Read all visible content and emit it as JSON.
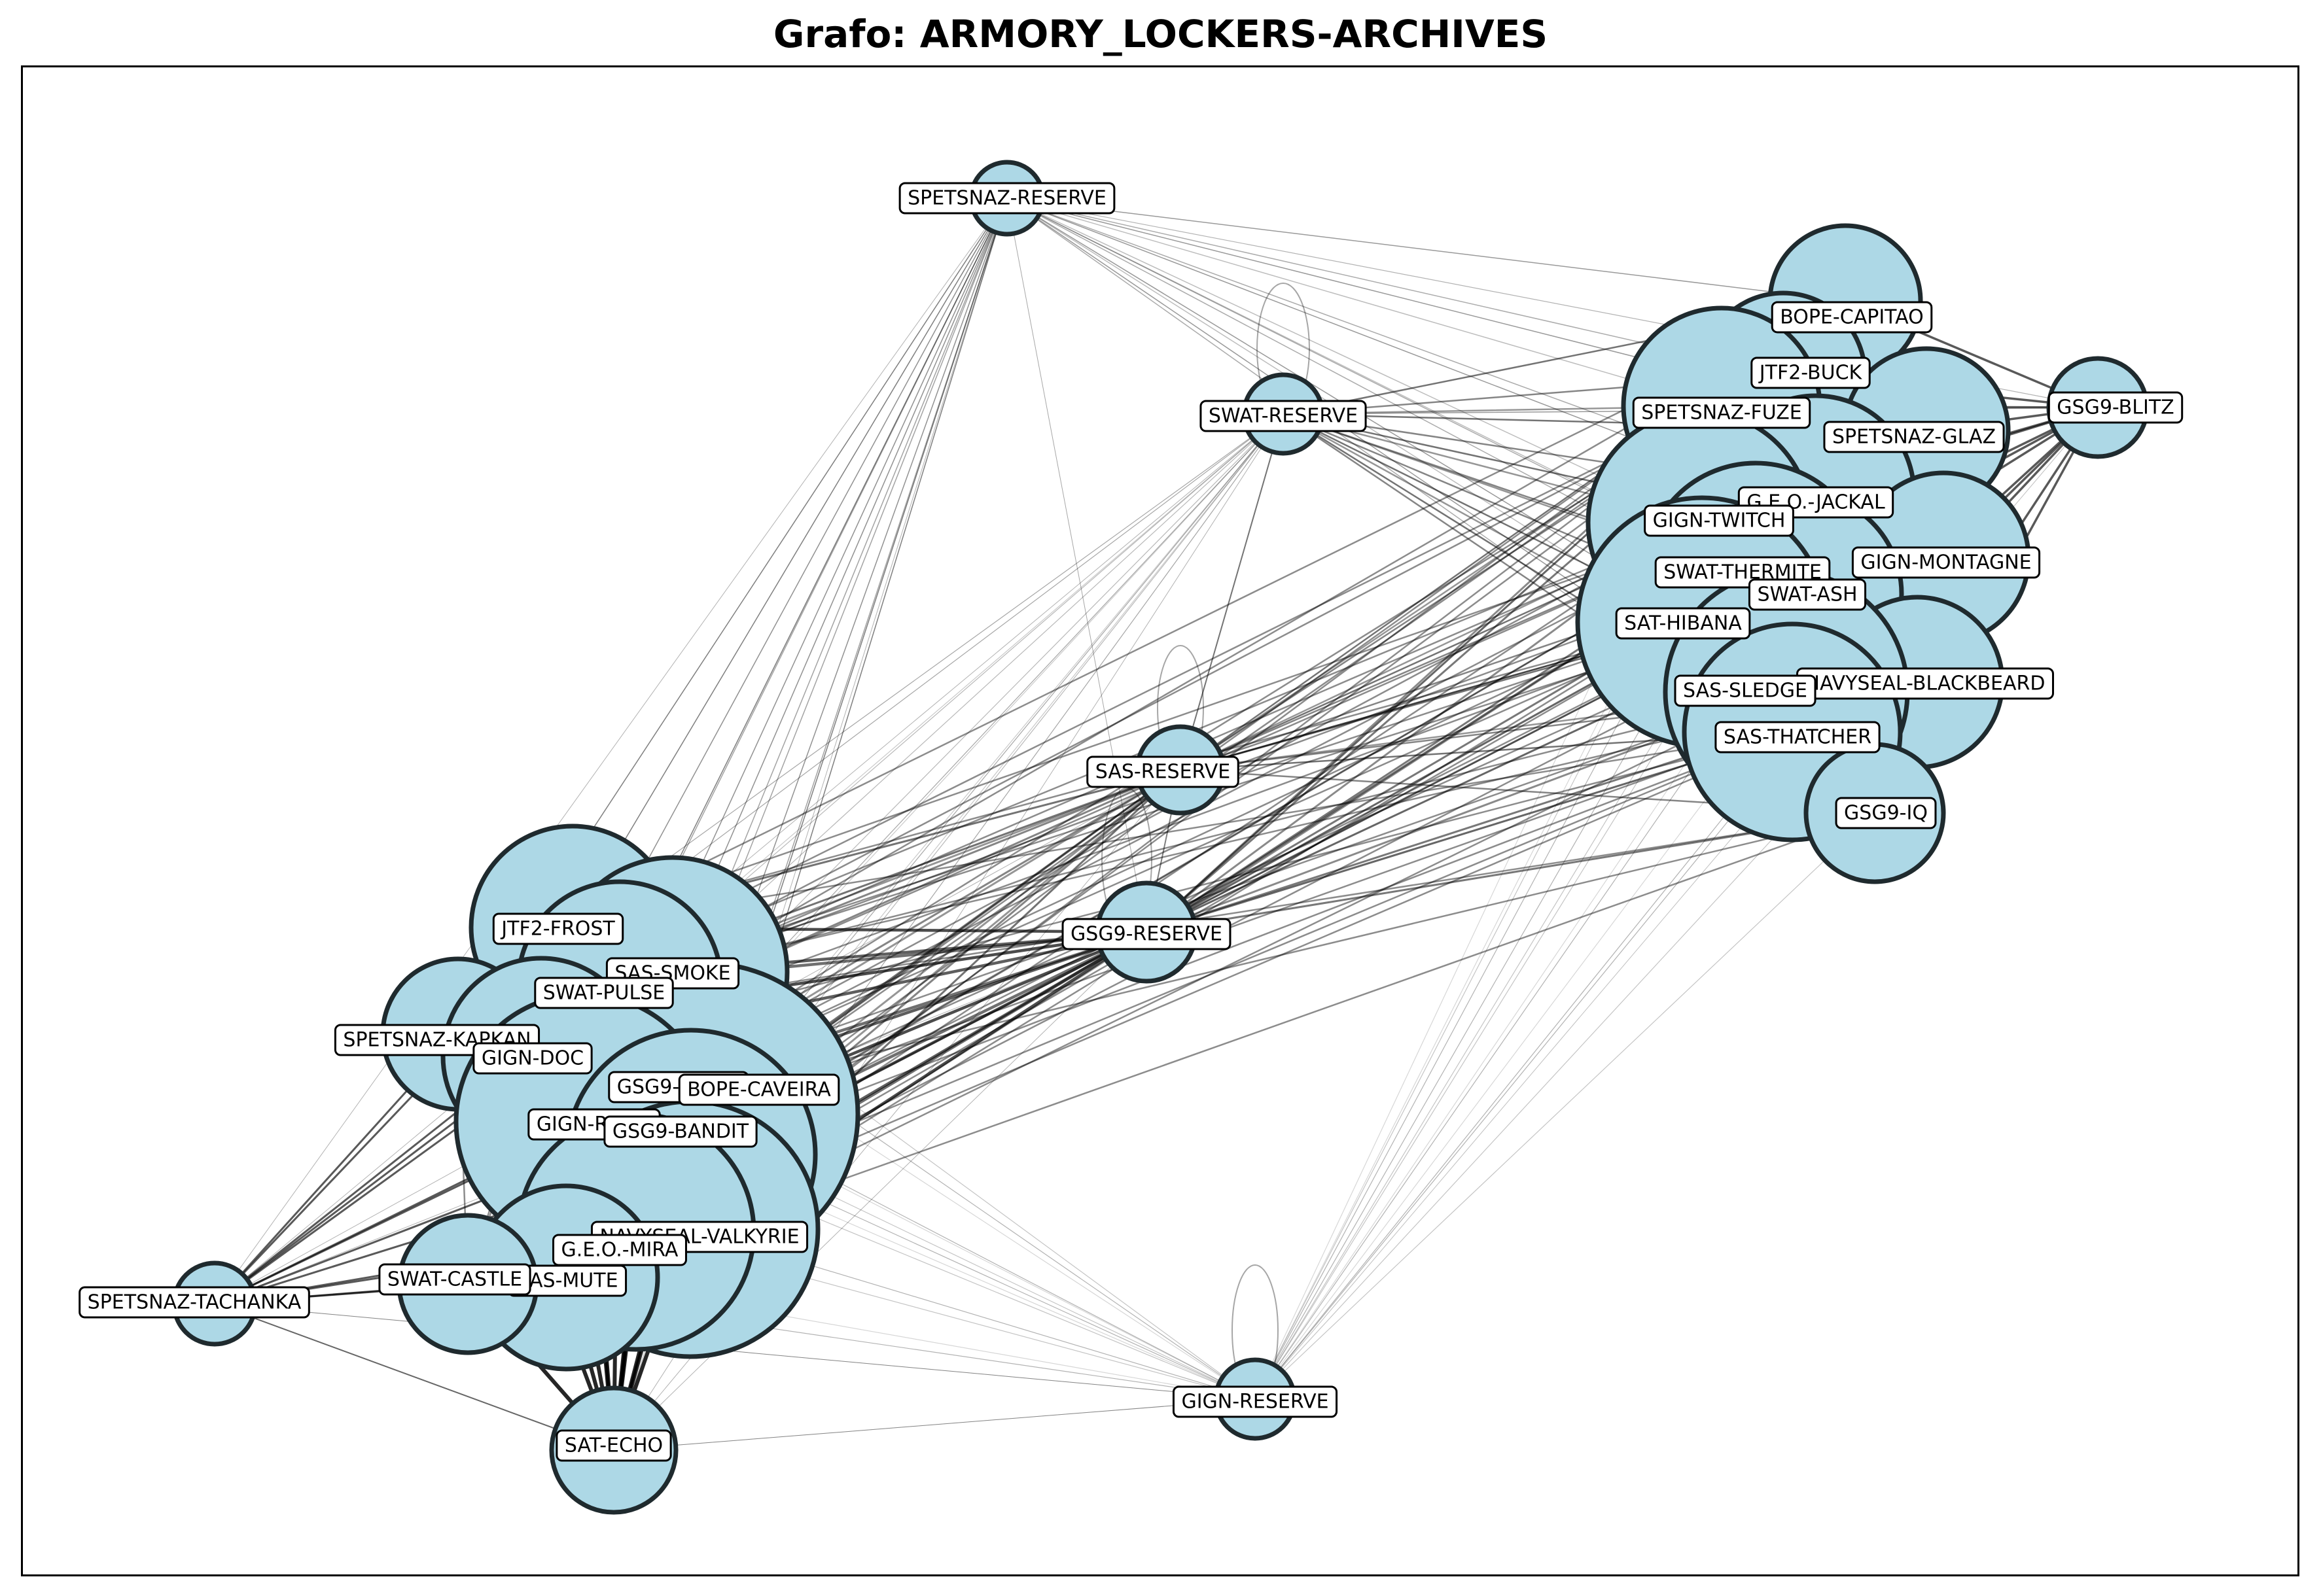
{
  "title": "Grafo: ARMORY_LOCKERS-ARCHIVES",
  "colors": {
    "node_fill": "#add8e6",
    "node_stroke": "#1f2a2e",
    "edge": "#000000",
    "label_bg": "#ffffff"
  },
  "graph": {
    "nodes": [
      {
        "id": "SPETSNAZ-RESERVE",
        "label": "SPETSNAZ-RESERVE",
        "weight": 1
      },
      {
        "id": "SWAT-RESERVE",
        "label": "SWAT-RESERVE",
        "weight": 1
      },
      {
        "id": "SAS-RESERVE",
        "label": "SAS-RESERVE",
        "weight": 1.1
      },
      {
        "id": "GSG9-RESERVE",
        "label": "GSG9-RESERVE",
        "weight": 1.3
      },
      {
        "id": "GIGN-RESERVE",
        "label": "GIGN-RESERVE",
        "weight": 1
      },
      {
        "id": "SAT-ECHO",
        "label": "SAT-ECHO",
        "weight": 1.6
      },
      {
        "id": "SPETSNAZ-TACHANKA",
        "label": "SPETSNAZ-TACHANKA",
        "weight": 1
      },
      {
        "id": "BOPE-CAPITAO",
        "label": "BOPE-CAPITAO",
        "weight": 2
      },
      {
        "id": "JTF2-BUCK",
        "label": "JTF2-BUCK",
        "weight": 2.2
      },
      {
        "id": "GSG9-BLITZ",
        "label": "GSG9-BLITZ",
        "weight": 1.3
      },
      {
        "id": "SPETSNAZ-FUZE",
        "label": "SPETSNAZ-FUZE",
        "weight": 2.6
      },
      {
        "id": "SPETSNAZ-GLAZ",
        "label": "SPETSNAZ-GLAZ",
        "weight": 2.2
      },
      {
        "id": "G.E.O.-JACKAL",
        "label": "G.E.O.-JACKAL",
        "weight": 2.6
      },
      {
        "id": "GIGN-TWITCH",
        "label": "GIGN-TWITCH",
        "weight": 3
      },
      {
        "id": "GIGN-MONTAGNE",
        "label": "GIGN-MONTAGNE",
        "weight": 2.3
      },
      {
        "id": "SWAT-THERMITE",
        "label": "SWAT-THERMITE",
        "weight": 3
      },
      {
        "id": "SWAT-ASH",
        "label": "SWAT-ASH",
        "weight": 2.7
      },
      {
        "id": "SAT-HIBANA",
        "label": "SAT-HIBANA",
        "weight": 3.3
      },
      {
        "id": "NAVYSEAL-BLACKBEARD",
        "label": "NAVYSEAL-BLACKBEARD",
        "weight": 2.3
      },
      {
        "id": "SAS-SLEDGE",
        "label": "SAS-SLEDGE",
        "weight": 3.2
      },
      {
        "id": "SAS-THATCHER",
        "label": "SAS-THATCHER",
        "weight": 2.9
      },
      {
        "id": "GSG9-IQ",
        "label": "GSG9-IQ",
        "weight": 2
      },
      {
        "id": "JTF2-FROST",
        "label": "JTF2-FROST",
        "weight": 2.7
      },
      {
        "id": "SAS-SMOKE",
        "label": "SAS-SMOKE",
        "weight": 3.1
      },
      {
        "id": "SWAT-PULSE",
        "label": "SWAT-PULSE",
        "weight": 2.8
      },
      {
        "id": "SPETSNAZ-KAPKAN",
        "label": "SPETSNAZ-KAPKAN",
        "weight": 2
      },
      {
        "id": "GIGN-DOC",
        "label": "GIGN-DOC",
        "weight": 2.6
      },
      {
        "id": "GSG9-JAGER",
        "label": "GSG9-JAGER",
        "weight": 3.2
      },
      {
        "id": "BOPE-CAVEIRA",
        "label": "BOPE-CAVEIRA",
        "weight": 4
      },
      {
        "id": "GIGN-ROOK",
        "label": "GIGN-ROOK",
        "weight": 3.5
      },
      {
        "id": "GSG9-BANDIT",
        "label": "GSG9-BANDIT",
        "weight": 3.4
      },
      {
        "id": "NAVYSEAL-VALKYRIE",
        "label": "NAVYSEAL-VALKYRIE",
        "weight": 3.5
      },
      {
        "id": "G.E.O.-MIRA",
        "label": "G.E.O.-MIRA",
        "weight": 3.2
      },
      {
        "id": "SAS-MUTE",
        "label": "SAS-MUTE",
        "weight": 2.6
      },
      {
        "id": "SWAT-CASTLE",
        "label": "SWAT-CASTLE",
        "weight": 2
      }
    ]
  }
}
